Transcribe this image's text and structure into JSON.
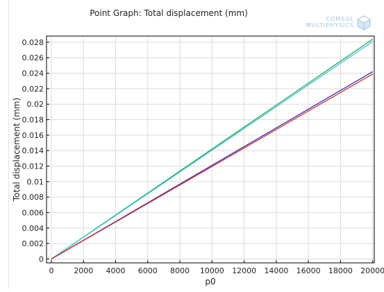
{
  "chart_data": {
    "type": "line",
    "title": "Point Graph: Total displacement (mm)",
    "xlabel": "p0",
    "ylabel": "Total displacement (mm)",
    "xlim": [
      -300,
      20100
    ],
    "ylim": [
      -0.0005,
      0.0288
    ],
    "xticks": [
      0,
      2000,
      4000,
      6000,
      8000,
      10000,
      12000,
      14000,
      16000,
      18000,
      20000
    ],
    "yticks": [
      0,
      0.002,
      0.004,
      0.006,
      0.008,
      0.01,
      0.012,
      0.014,
      0.016,
      0.018,
      0.02,
      0.022,
      0.024,
      0.026,
      0.028
    ],
    "ytick_labels": [
      "0",
      "0.002",
      "0.004",
      "0.006",
      "0.008",
      "0.01",
      "0.012",
      "0.014",
      "0.016",
      "0.018",
      "0.02",
      "0.022",
      "0.024",
      "0.026",
      "0.028"
    ],
    "grid": true,
    "legend": "none",
    "series": [
      {
        "color": "#2ca25f",
        "x": [
          0,
          20000
        ],
        "values": [
          0,
          0.0284
        ]
      },
      {
        "color": "#40c8c8",
        "x": [
          0,
          20000
        ],
        "values": [
          0,
          0.0281
        ]
      },
      {
        "color": "#3030b0",
        "x": [
          0,
          20000
        ],
        "values": [
          0,
          0.0242
        ]
      },
      {
        "color": "#d03030",
        "x": [
          0,
          20000
        ],
        "values": [
          0,
          0.0239
        ]
      }
    ]
  },
  "logo": {
    "line1": "COMSOL",
    "line2": "MULTIPHYSICS"
  }
}
